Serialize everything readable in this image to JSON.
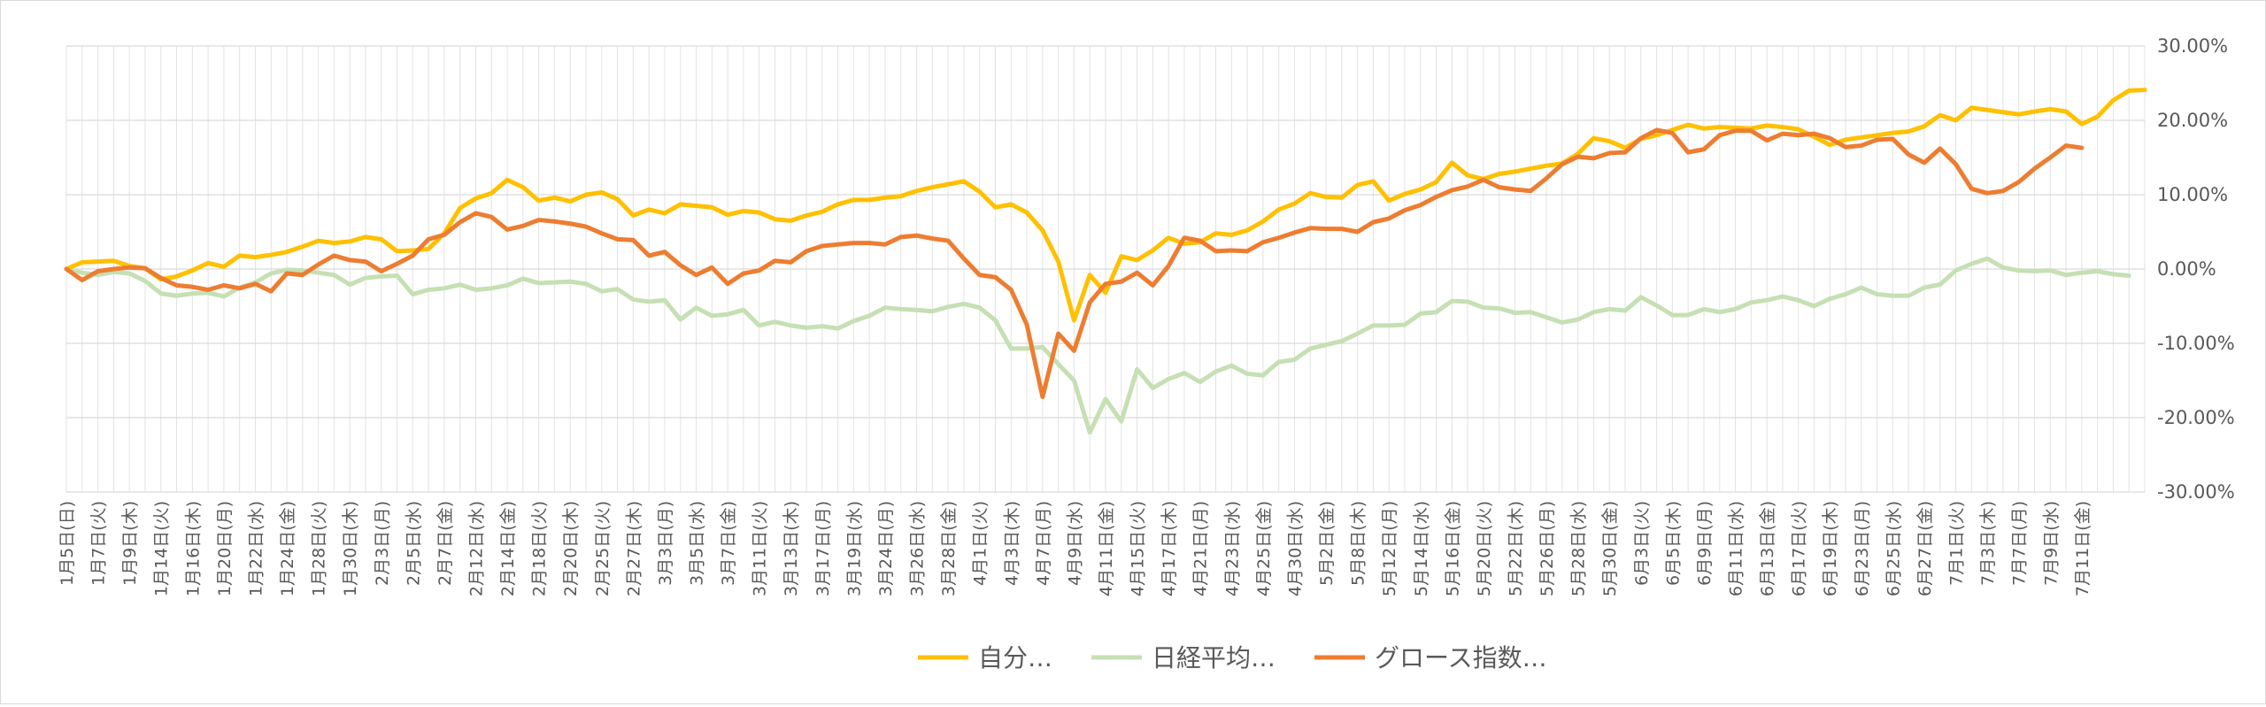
{
  "chart_data": {
    "type": "line",
    "ylim": [
      -0.3,
      0.3
    ],
    "y_ticks": [
      -0.3,
      -0.2,
      -0.1,
      0,
      0.1,
      0.2,
      0.3
    ],
    "y_tick_labels": [
      "-30.00%",
      "-20.00%",
      "-10.00%",
      "0.00%",
      "10.00%",
      "20.00%",
      "30.00%"
    ],
    "y_axis_side": "right",
    "grid": true,
    "legend_position": "bottom",
    "x_tick_labels": [
      "1月5日(日)",
      "1月7日(火)",
      "1月9日(木)",
      "1月14日(火)",
      "1月16日(木)",
      "1月20日(月)",
      "1月22日(水)",
      "1月24日(金)",
      "1月28日(火)",
      "1月30日(木)",
      "2月3日(月)",
      "2月5日(水)",
      "2月7日(金)",
      "2月12日(水)",
      "2月14日(金)",
      "2月18日(火)",
      "2月20日(木)",
      "2月25日(火)",
      "2月27日(木)",
      "3月3日(月)",
      "3月5日(水)",
      "3月7日(金)",
      "3月11日(火)",
      "3月13日(木)",
      "3月17日(月)",
      "3月19日(水)",
      "3月24日(月)",
      "3月26日(水)",
      "3月28日(金)",
      "4月1日(火)",
      "4月3日(木)",
      "4月7日(月)",
      "4月9日(水)",
      "4月11日(金)",
      "4月15日(火)",
      "4月17日(木)",
      "4月21日(月)",
      "4月23日(水)",
      "4月25日(金)",
      "4月30日(水)",
      "5月2日(金)",
      "5月8日(木)",
      "5月12日(月)",
      "5月14日(水)",
      "5月16日(金)",
      "5月20日(火)",
      "5月22日(木)",
      "5月26日(月)",
      "5月28日(水)",
      "5月30日(金)",
      "6月3日(火)",
      "6月5日(木)",
      "6月9日(月)",
      "6月11日(水)",
      "6月13日(金)",
      "6月17日(火)",
      "6月19日(木)",
      "6月23日(月)",
      "6月25日(水)",
      "6月27日(金)",
      "7月1日(火)",
      "7月3日(木)",
      "7月7日(月)",
      "7月9日(水)",
      "7月11日(金)"
    ],
    "series": [
      {
        "name": "自分…",
        "color": "#ffc000",
        "values": [
          0.0,
          0.009,
          0.01,
          0.011,
          0.004,
          0.001,
          -0.014,
          -0.01,
          -0.002,
          0.008,
          0.003,
          0.018,
          0.016,
          0.019,
          0.023,
          0.03,
          0.038,
          0.035,
          0.037,
          0.043,
          0.04,
          0.024,
          0.025,
          0.027,
          0.048,
          0.082,
          0.095,
          0.102,
          0.12,
          0.11,
          0.092,
          0.096,
          0.091,
          0.1,
          0.103,
          0.094,
          0.072,
          0.08,
          0.075,
          0.087,
          0.085,
          0.083,
          0.073,
          0.078,
          0.076,
          0.067,
          0.065,
          0.072,
          0.077,
          0.087,
          0.093,
          0.093,
          0.096,
          0.098,
          0.105,
          0.11,
          0.114,
          0.118,
          0.104,
          0.083,
          0.087,
          0.076,
          0.052,
          0.01,
          -0.069,
          -0.008,
          -0.032,
          0.017,
          0.012,
          0.025,
          0.042,
          0.034,
          0.036,
          0.048,
          0.046,
          0.052,
          0.064,
          0.08,
          0.088,
          0.102,
          0.097,
          0.096,
          0.113,
          0.118,
          0.092,
          0.101,
          0.107,
          0.117,
          0.143,
          0.126,
          0.121,
          0.128,
          0.131,
          0.135,
          0.139,
          0.142,
          0.155,
          0.176,
          0.172,
          0.163,
          0.175,
          0.18,
          0.187,
          0.194,
          0.189,
          0.191,
          0.19,
          0.189,
          0.193,
          0.191,
          0.188,
          0.178,
          0.167,
          0.174,
          0.177,
          0.18,
          0.183,
          0.185,
          0.192,
          0.207,
          0.2,
          0.217,
          0.214,
          0.211,
          0.208,
          0.212,
          0.215,
          0.212,
          0.195,
          0.205,
          0.227,
          0.24,
          0.241
        ]
      },
      {
        "name": "日経平均…",
        "color": "#c5e0b4",
        "values": [
          0.0,
          -0.005,
          -0.008,
          -0.004,
          -0.006,
          -0.016,
          -0.033,
          -0.036,
          -0.033,
          -0.032,
          -0.037,
          -0.025,
          -0.018,
          -0.006,
          -0.001,
          -0.002,
          -0.005,
          -0.008,
          -0.021,
          -0.012,
          -0.01,
          -0.009,
          -0.034,
          -0.028,
          -0.026,
          -0.021,
          -0.028,
          -0.026,
          -0.022,
          -0.013,
          -0.019,
          -0.018,
          -0.017,
          -0.02,
          -0.03,
          -0.027,
          -0.041,
          -0.044,
          -0.042,
          -0.068,
          -0.052,
          -0.063,
          -0.061,
          -0.055,
          -0.076,
          -0.071,
          -0.076,
          -0.079,
          -0.077,
          -0.08,
          -0.07,
          -0.063,
          -0.052,
          -0.054,
          -0.055,
          -0.057,
          -0.051,
          -0.047,
          -0.052,
          -0.069,
          -0.107,
          -0.107,
          -0.105,
          -0.128,
          -0.15,
          -0.22,
          -0.175,
          -0.205,
          -0.135,
          -0.16,
          -0.148,
          -0.14,
          -0.152,
          -0.138,
          -0.13,
          -0.141,
          -0.143,
          -0.125,
          -0.122,
          -0.107,
          -0.102,
          -0.097,
          -0.087,
          -0.076,
          -0.076,
          -0.075,
          -0.06,
          -0.058,
          -0.043,
          -0.044,
          -0.052,
          -0.053,
          -0.059,
          -0.058,
          -0.065,
          -0.072,
          -0.068,
          -0.058,
          -0.054,
          -0.056,
          -0.038,
          -0.049,
          -0.062,
          -0.062,
          -0.054,
          -0.058,
          -0.054,
          -0.045,
          -0.042,
          -0.037,
          -0.042,
          -0.05,
          -0.04,
          -0.034,
          -0.025,
          -0.034,
          -0.036,
          -0.036,
          -0.025,
          -0.021,
          -0.002,
          0.007,
          0.014,
          0.002,
          -0.002,
          -0.003,
          -0.002,
          -0.008,
          -0.005,
          -0.003,
          -0.007,
          -0.009
        ]
      },
      {
        "name": "グロース指数…",
        "color": "#ed7d31",
        "values": [
          0.0,
          -0.015,
          -0.003,
          0.0,
          0.002,
          0.001,
          -0.012,
          -0.022,
          -0.024,
          -0.028,
          -0.022,
          -0.026,
          -0.02,
          -0.03,
          -0.006,
          -0.008,
          0.006,
          0.018,
          0.012,
          0.01,
          -0.003,
          0.007,
          0.018,
          0.04,
          0.046,
          0.063,
          0.075,
          0.07,
          0.053,
          0.058,
          0.066,
          0.064,
          0.061,
          0.057,
          0.048,
          0.04,
          0.039,
          0.018,
          0.023,
          0.005,
          -0.008,
          0.002,
          -0.02,
          -0.006,
          -0.002,
          0.011,
          0.009,
          0.024,
          0.031,
          0.033,
          0.035,
          0.035,
          0.033,
          0.043,
          0.045,
          0.041,
          0.038,
          0.014,
          -0.008,
          -0.011,
          -0.028,
          -0.075,
          -0.172,
          -0.087,
          -0.11,
          -0.045,
          -0.02,
          -0.017,
          -0.005,
          -0.022,
          0.004,
          0.042,
          0.038,
          0.024,
          0.025,
          0.024,
          0.036,
          0.042,
          0.049,
          0.055,
          0.054,
          0.054,
          0.05,
          0.063,
          0.068,
          0.079,
          0.086,
          0.097,
          0.106,
          0.111,
          0.12,
          0.11,
          0.107,
          0.105,
          0.122,
          0.141,
          0.151,
          0.149,
          0.156,
          0.157,
          0.176,
          0.187,
          0.183,
          0.157,
          0.161,
          0.18,
          0.186,
          0.186,
          0.173,
          0.182,
          0.18,
          0.182,
          0.176,
          0.164,
          0.166,
          0.174,
          0.175,
          0.154,
          0.143,
          0.162,
          0.141,
          0.108,
          0.102,
          0.105,
          0.117,
          0.135,
          0.15,
          0.166,
          0.163
        ]
      }
    ]
  }
}
